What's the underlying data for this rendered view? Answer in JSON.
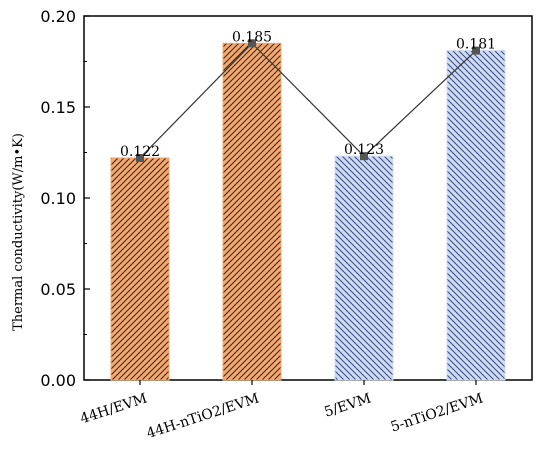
{
  "chart_data": {
    "type": "bar",
    "title": "",
    "xlabel": "",
    "ylabel": "Thermal conductivity(W/m•K)",
    "categories": [
      "44H/EVM",
      "44H-nTiO2/EVM",
      "5/EVM",
      "5-nTiO2/EVM"
    ],
    "values": [
      0.122,
      0.185,
      0.123,
      0.181
    ],
    "data_labels": [
      "0.122",
      "0.185",
      "0.123",
      "0.181"
    ],
    "ylim": [
      0,
      0.2
    ],
    "yticks": [
      "0.00",
      "0.05",
      "0.10",
      "0.15",
      "0.20"
    ],
    "ytick_values": [
      0,
      0.05,
      0.1,
      0.15,
      0.2
    ],
    "grid": false,
    "legend": "none",
    "overlay_line": true,
    "bar_colors": [
      "#f5a86b",
      "#f5a86b",
      "#cfdcf0",
      "#cfdcf0"
    ],
    "hatch_colors": [
      "#2b2b2b",
      "#2b2b2b",
      "#3a4a8a",
      "#3a4a8a"
    ],
    "hatch_direction": [
      "forward",
      "forward",
      "backward",
      "backward"
    ],
    "line_color": "#333333",
    "marker_color": "#555555"
  }
}
